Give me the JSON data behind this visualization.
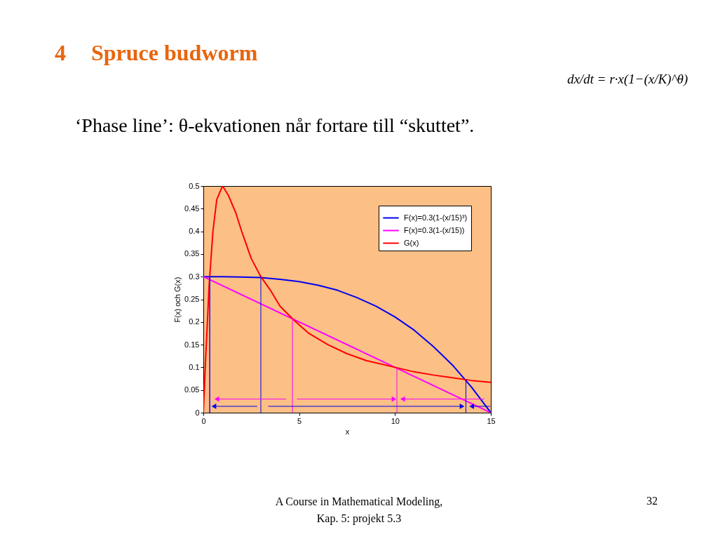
{
  "chart_data": {
    "type": "line",
    "title": "Spruce budworm",
    "subtitle": "‘Phase line’: θ-ekvationen når fortare till “skuttet”.",
    "xlabel": "x",
    "ylabel": "F(x) och G(x)",
    "xlim": [
      0,
      15
    ],
    "ylim": [
      0,
      0.5
    ],
    "xticks": [
      0,
      5,
      10,
      15
    ],
    "yticks": [
      0,
      0.05,
      0.1,
      0.15,
      0.2,
      0.25,
      0.3,
      0.35,
      0.4,
      0.45,
      0.5
    ],
    "legend": "top right",
    "series": [
      {
        "name": "F(x)=0.3(1-(x/15)³)",
        "color": "#0000ee",
        "x": [
          0,
          1,
          2,
          3,
          4,
          5,
          6,
          7,
          8,
          9,
          10,
          11,
          12,
          13,
          14,
          15
        ],
        "values": [
          0.3,
          0.3,
          0.299,
          0.298,
          0.294,
          0.289,
          0.281,
          0.27,
          0.254,
          0.235,
          0.211,
          0.182,
          0.146,
          0.105,
          0.056,
          0
        ]
      },
      {
        "name": "F(x)=0.3(1-(x/15))",
        "color": "#ff00ff",
        "x": [
          0,
          15
        ],
        "values": [
          0.3,
          0
        ]
      },
      {
        "name": "G(x)",
        "color": "#ff0000",
        "x": [
          0,
          0.1,
          0.2,
          0.3,
          0.4,
          0.5,
          0.7,
          1,
          1.3,
          1.7,
          2,
          2.5,
          3,
          3.5,
          4,
          4.7,
          5.5,
          6.5,
          7.5,
          8.5,
          10,
          11,
          12,
          13,
          14,
          15
        ],
        "values": [
          0,
          0.1,
          0.19,
          0.28,
          0.34,
          0.4,
          0.47,
          0.5,
          0.48,
          0.44,
          0.4,
          0.34,
          0.3,
          0.27,
          0.235,
          0.205,
          0.175,
          0.15,
          0.13,
          0.115,
          0.1,
          0.09,
          0.083,
          0.077,
          0.071,
          0.067
        ]
      },
      {
        "type": "line",
        "color": "#ff00ff",
        "x": [
          0.32,
          0.32
        ],
        "values": [
          0,
          0.29
        ]
      },
      {
        "type": "line",
        "color": "#0000ee",
        "x": [
          0.34,
          0.34
        ],
        "values": [
          0,
          0.3
        ]
      },
      {
        "type": "line",
        "color": "#0000ee",
        "x": [
          3,
          3
        ],
        "values": [
          0,
          0.3
        ]
      },
      {
        "type": "line",
        "color": "#ff00ff",
        "x": [
          4.65,
          4.65
        ],
        "values": [
          0,
          0.207
        ]
      },
      {
        "type": "line",
        "color": "#ff00ff",
        "x": [
          10.1,
          10.1
        ],
        "values": [
          0,
          0.099
        ]
      },
      {
        "type": "line",
        "color": "#0000ee",
        "x": [
          13.7,
          13.7
        ],
        "values": [
          0,
          0.073
        ]
      },
      {
        "type": "line",
        "color": "#ff00ff",
        "marker": "triangle",
        "x": [
          4.3,
          0.7
        ],
        "values": [
          0.03,
          0.03
        ]
      },
      {
        "type": "line",
        "color": "#ff00ff",
        "marker": "triangle",
        "x": [
          4.9,
          9.95
        ],
        "values": [
          0.03,
          0.03
        ]
      },
      {
        "type": "line",
        "color": "#ff00ff",
        "marker": "triangle",
        "x": [
          14.65,
          10.4
        ],
        "values": [
          0.03,
          0.03
        ]
      },
      {
        "type": "line",
        "color": "#0000ee",
        "marker": "triangle",
        "x": [
          2.8,
          0.55
        ],
        "values": [
          0.014,
          0.014
        ]
      },
      {
        "type": "line",
        "color": "#0000ee",
        "marker": "triangle",
        "x": [
          3.4,
          13.5
        ],
        "values": [
          0.014,
          0.014
        ]
      },
      {
        "type": "line",
        "color": "#0000ee",
        "marker": "triangle",
        "x": [
          14.95,
          14.0
        ],
        "values": [
          0.014,
          0.014
        ]
      }
    ],
    "annotations": [
      "4",
      "dx/dt = r·x(1−(x/K)^θ)",
      "A Course in Mathematical Modeling,",
      "Kap. 5: projekt 5.3",
      "32"
    ]
  }
}
